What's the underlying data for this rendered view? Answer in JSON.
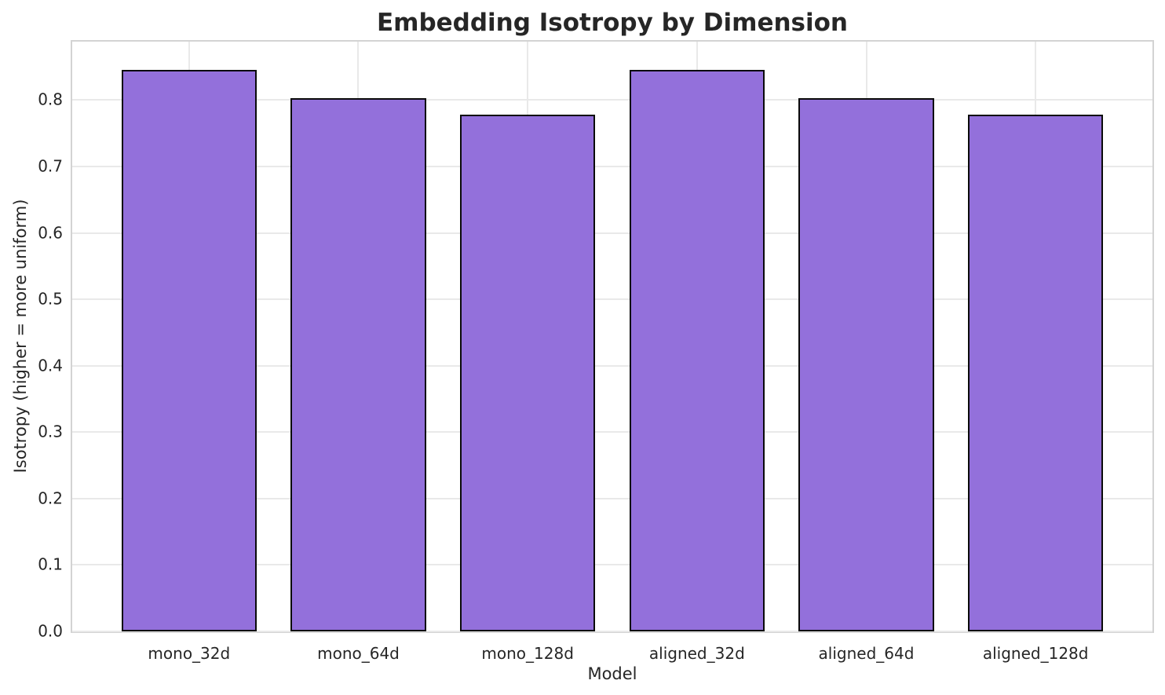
{
  "chart_data": {
    "type": "bar",
    "title": "Embedding Isotropy by Dimension",
    "xlabel": "Model",
    "ylabel": "Isotropy (higher = more uniform)",
    "categories": [
      "mono_32d",
      "mono_64d",
      "mono_128d",
      "aligned_32d",
      "aligned_64d",
      "aligned_128d"
    ],
    "values": [
      0.846,
      0.803,
      0.778,
      0.845,
      0.803,
      0.778
    ],
    "yticks": [
      0.0,
      0.1,
      0.2,
      0.3,
      0.4,
      0.5,
      0.6,
      0.7,
      0.8
    ],
    "ylim": [
      0,
      0.888
    ],
    "grid": true,
    "legend_position": "none",
    "colors": {
      "bar_fill": "#9370DB",
      "bar_edge": "#0a0a0a",
      "grid_line": "#e9e9e9",
      "spine": "#d3d3d3",
      "text": "#262626",
      "background": "#ffffff"
    }
  }
}
